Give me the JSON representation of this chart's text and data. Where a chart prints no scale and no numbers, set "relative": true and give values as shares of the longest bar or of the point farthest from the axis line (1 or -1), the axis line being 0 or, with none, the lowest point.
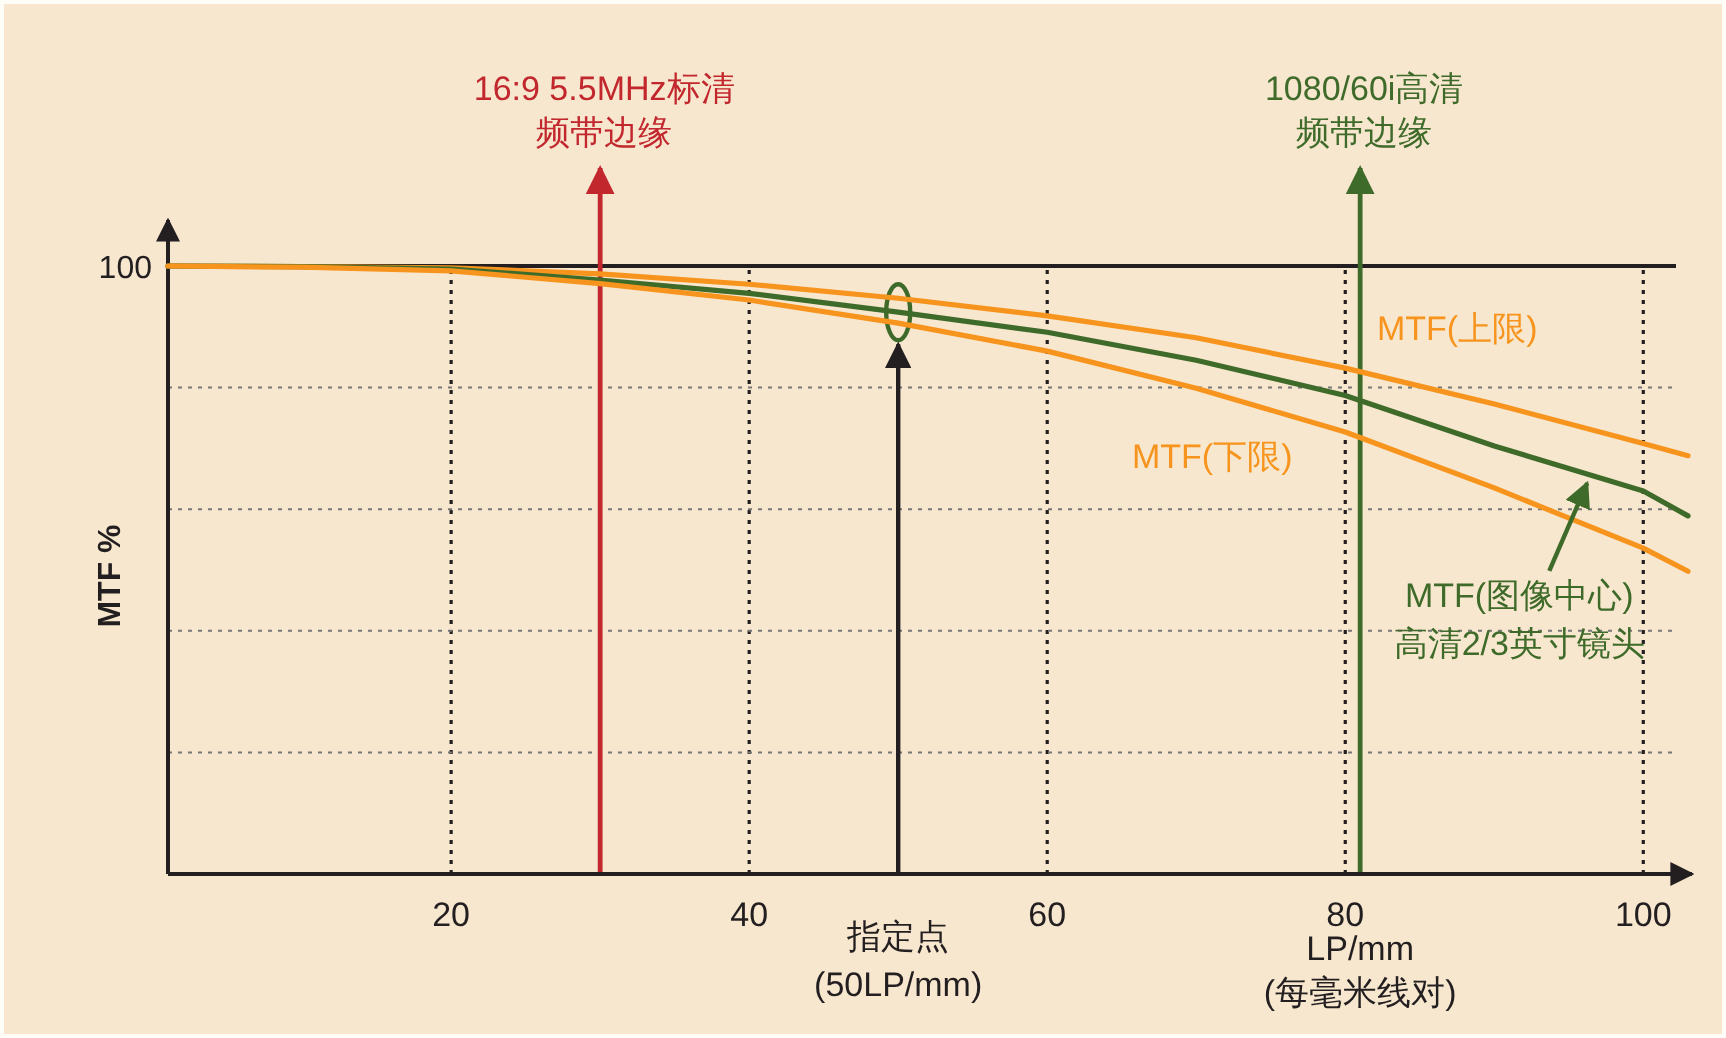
{
  "chart_data": {
    "type": "line",
    "xlabel": "LP/mm\n(每毫米线对)",
    "ylabel": "MTF %",
    "relative": true,
    "grid": "x",
    "x": [
      1,
      10,
      20,
      30,
      40,
      50,
      60,
      70,
      80,
      90,
      100,
      103
    ],
    "xlim": [
      1,
      103
    ],
    "xticks": [
      20,
      40,
      60,
      80,
      100
    ],
    "series": [
      {
        "name": "MTF(上限)",
        "color": "#f7941d",
        "values": [
          1,
          0.999,
          0.997,
          0.987,
          0.97,
          0.947,
          0.918,
          0.882,
          0.832,
          0.773,
          0.708,
          0.688
        ]
      },
      {
        "name": "MTF(图像中心)\n高清2/3英寸镜头",
        "color": "#3f6b2a",
        "values": [
          1,
          0.999,
          0.995,
          0.977,
          0.955,
          0.924,
          0.891,
          0.845,
          0.787,
          0.704,
          0.63,
          0.589
        ]
      },
      {
        "name": "MTF(下限)",
        "color": "#f7941d",
        "values": [
          1,
          0.998,
          0.992,
          0.971,
          0.944,
          0.906,
          0.86,
          0.799,
          0.727,
          0.635,
          0.536,
          0.498
        ]
      }
    ],
    "ref_lines": [
      {
        "axis": "y",
        "value": 1,
        "label": "100",
        "color": "#231f20",
        "line_style": "solid"
      },
      {
        "axis": "y",
        "value": 0.8,
        "color": "#777777",
        "line_style": "dotted"
      },
      {
        "axis": "y",
        "value": 0.6,
        "color": "#777777",
        "line_style": "dotted"
      },
      {
        "axis": "y",
        "value": 0.4,
        "color": "#777777",
        "line_style": "dotted"
      },
      {
        "axis": "y",
        "value": 0.2,
        "color": "#777777",
        "line_style": "dotted"
      },
      {
        "axis": "x",
        "value": 30,
        "color": "#c1272d",
        "line_style": "solid"
      },
      {
        "axis": "x",
        "value": 81,
        "label": "1080/60i高清频带边缘",
        "color": "#3f6b2a",
        "line_style": "solid"
      },
      {
        "axis": "x",
        "value": 50,
        "label": "指定点\n(50LP/mm)",
        "color": "#231f20",
        "line_style": "solid"
      }
    ],
    "annotations": [
      "16:9 5.5MHz标清频带边缘"
    ]
  }
}
